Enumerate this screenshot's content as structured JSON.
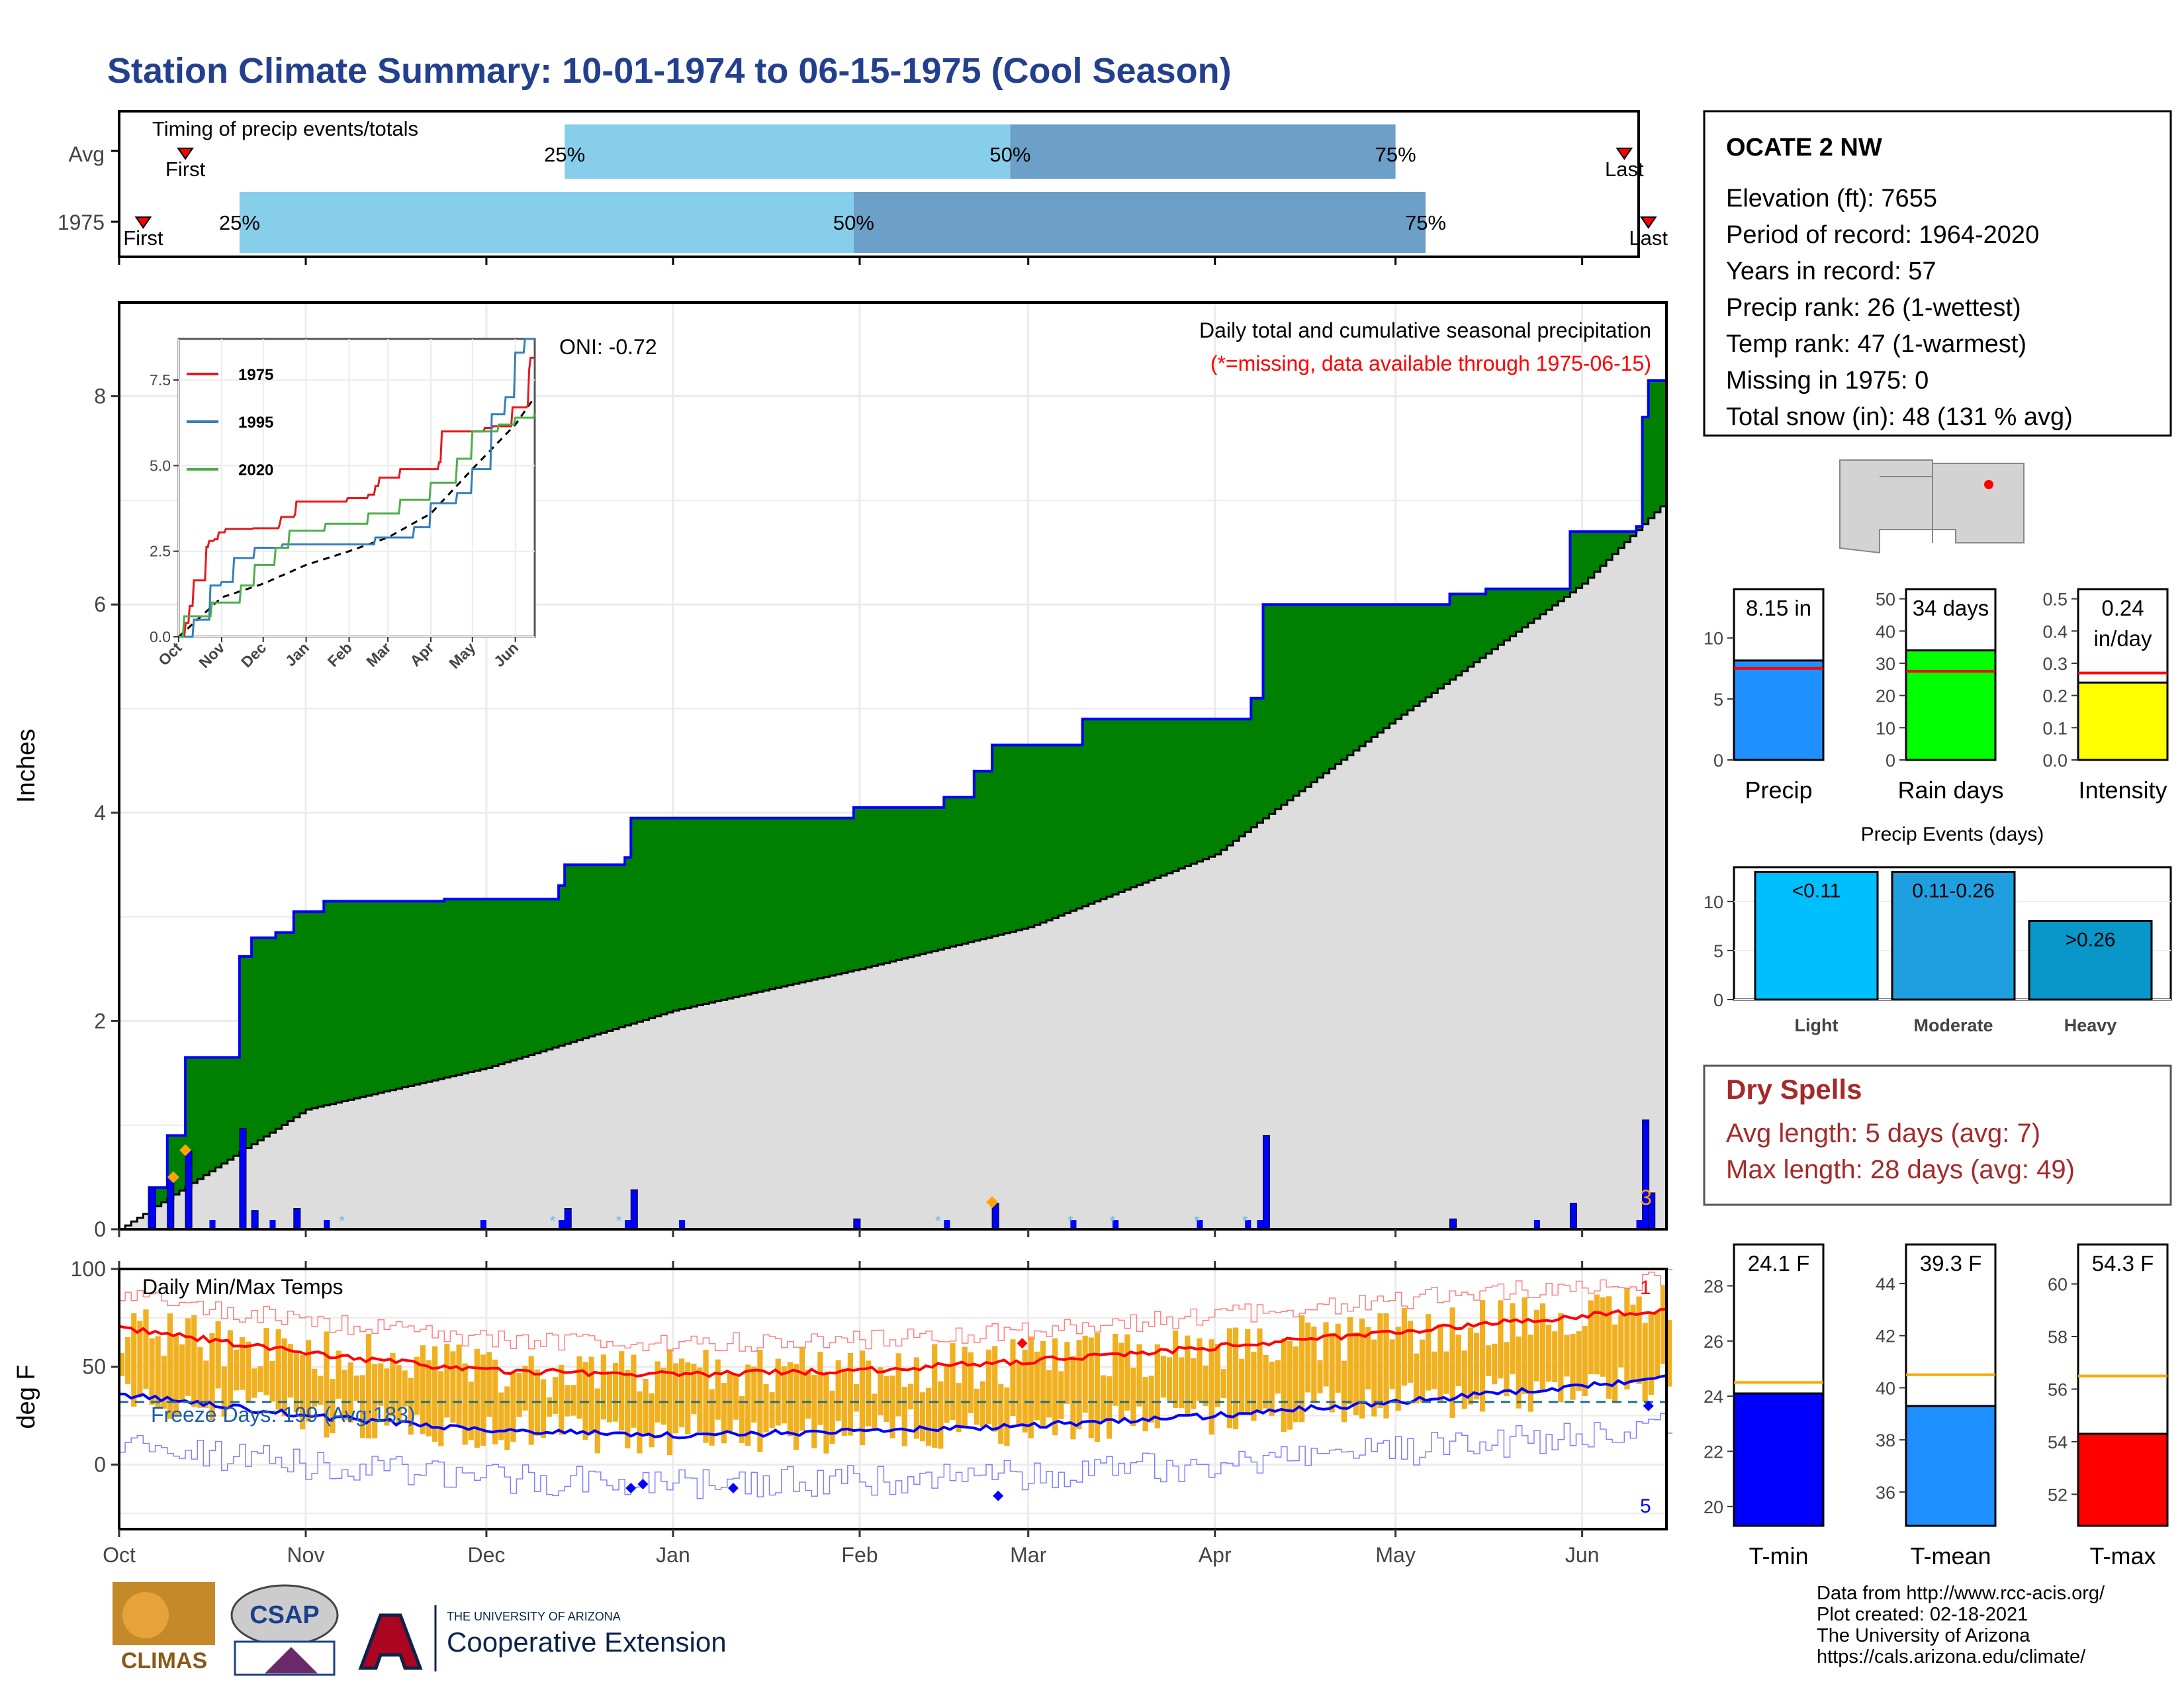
{
  "title": "Station Climate Summary: 10-01-1974 to 06-15-1975 (Cool Season)",
  "colors": {
    "title": "#23408e",
    "precip_green": "#008000",
    "precip_outline": "#0000ff",
    "avg_gray": "#dddddd",
    "bar_light": "#87ceeb",
    "bar_dark": "#6ca0c8",
    "tmax_line": "#ff0000",
    "tmin_line": "#0000ff",
    "temp_bars": "#f0b020",
    "dry_spell_text": "#a52a2a",
    "missing_note": "#ff0000"
  },
  "timing": {
    "title": "Timing of precip events/totals",
    "rows": [
      {
        "label": "Avg",
        "first": "First",
        "last": "Last",
        "p25": "25%",
        "p50": "50%",
        "p75": "75%",
        "first_date": "1974-10-12",
        "d25": "1974-12-14",
        "d50": "1975-02-26",
        "d75": "1975-05-01",
        "last_date": "1975-06-08"
      },
      {
        "label": "1975",
        "first": "First",
        "last": "Last",
        "p25": "25%",
        "p50": "50%",
        "p75": "75%",
        "first_date": "1974-10-05",
        "d25": "1974-10-21",
        "d50": "1975-01-31",
        "d75": "1975-05-06",
        "last_date": "1975-06-12"
      }
    ]
  },
  "main_chart": {
    "ylabel": "Inches",
    "title_line1": "Daily total and cumulative seasonal precipitation",
    "title_line2": "(*=missing, data available through 1975-06-15)",
    "oni": "ONI: -0.72",
    "y_ticks": [
      "0",
      "2",
      "4",
      "6",
      "8"
    ],
    "x_ticks": [
      "Oct",
      "Nov",
      "Dec",
      "Jan",
      "Feb",
      "Mar",
      "Apr",
      "May",
      "Jun"
    ],
    "corner_label": "3"
  },
  "inset": {
    "legend": [
      "1975",
      "1995",
      "2020"
    ],
    "legend_colors": [
      "#e41a1c",
      "#377eb8",
      "#4daf4a"
    ],
    "y_ticks": [
      "0.0",
      "2.5",
      "5.0",
      "7.5"
    ],
    "x_ticks": [
      "Oct",
      "Nov",
      "Dec",
      "Jan",
      "Feb",
      "Mar",
      "Apr",
      "May",
      "Jun"
    ]
  },
  "temp_chart": {
    "ylabel": "deg F",
    "title": "Daily Min/Max Temps",
    "freeze": "Freeze Days: 199 (Avg:183)",
    "y_ticks": [
      "0",
      "50",
      "100"
    ],
    "x_ticks": [
      "Oct",
      "Nov",
      "Dec",
      "Jan",
      "Feb",
      "Mar",
      "Apr",
      "May",
      "Jun"
    ],
    "record_high_count": "1",
    "record_low_count": "5"
  },
  "station": {
    "name": "OCATE 2 NW",
    "lines": [
      "Elevation (ft): 7655",
      "Period of record: 1964-2020",
      "Years in record: 57",
      "Precip rank: 26 (1-wettest)",
      "Temp rank: 47 (1-warmest)",
      "Missing in 1975: 0",
      "Total snow (in): 48 (131 % avg)"
    ]
  },
  "summary_bars": [
    {
      "name": "Precip",
      "label": "8.15 in",
      "label2": "",
      "value": 8.15,
      "avg": 7.5,
      "ymax": 14,
      "ticks": [
        "0",
        "5",
        "10"
      ],
      "tickvals": [
        0,
        5,
        10
      ],
      "color": "#1e90ff"
    },
    {
      "name": "Rain days",
      "label": "34 days",
      "label2": "",
      "value": 34,
      "avg": 27.5,
      "ymax": 53,
      "ticks": [
        "0",
        "10",
        "20",
        "30",
        "40",
        "50"
      ],
      "tickvals": [
        0,
        10,
        20,
        30,
        40,
        50
      ],
      "color": "#00ff00"
    },
    {
      "name": "Intensity",
      "label": "0.24",
      "label2": "in/day",
      "value": 0.24,
      "avg": 0.27,
      "ymax": 0.53,
      "ticks": [
        "0.0",
        "0.1",
        "0.2",
        "0.3",
        "0.4",
        "0.5"
      ],
      "tickvals": [
        0,
        0.1,
        0.2,
        0.3,
        0.4,
        0.5
      ],
      "color": "#ffff00"
    }
  ],
  "precip_events": {
    "title": "Precip Events (days)",
    "ticks": [
      "0",
      "5",
      "10"
    ],
    "bars": [
      {
        "name": "Light",
        "label": "<0.11",
        "value": 13,
        "color": "#00bfff"
      },
      {
        "name": "Moderate",
        "label": "0.11-0.26",
        "value": 13,
        "color": "#1ea0e0"
      },
      {
        "name": "Heavy",
        "label": ">0.26",
        "value": 8,
        "color": "#0996c8"
      }
    ]
  },
  "dry_spells": {
    "title": "Dry Spells",
    "avg": "Avg length: 5 days (avg: 7)",
    "max": "Max length: 28 days (avg: 49)"
  },
  "temp_bars": [
    {
      "name": "T-min",
      "label": "24.1 F",
      "value": 24.1,
      "avg": 24.5,
      "ymin": 19.3,
      "ymax": 29.5,
      "ticks": [
        "20",
        "22",
        "24",
        "26",
        "28"
      ],
      "tickvals": [
        20,
        22,
        24,
        26,
        28
      ],
      "color": "#0000ff"
    },
    {
      "name": "T-mean",
      "label": "39.3 F",
      "value": 39.3,
      "avg": 40.5,
      "ymin": 34.7,
      "ymax": 45.5,
      "ticks": [
        "36",
        "38",
        "40",
        "42",
        "44"
      ],
      "tickvals": [
        36,
        38,
        40,
        42,
        44
      ],
      "color": "#1e90ff"
    },
    {
      "name": "T-max",
      "label": "54.3 F",
      "value": 54.3,
      "avg": 56.5,
      "ymin": 50.8,
      "ymax": 61.5,
      "ticks": [
        "52",
        "54",
        "56",
        "58",
        "60"
      ],
      "tickvals": [
        52,
        54,
        56,
        58,
        60
      ],
      "color": "#ff0000"
    }
  ],
  "footer": {
    "lines": [
      "Data from http://www.rcc-acis.org/",
      "Plot created: 02-18-2021",
      "The University of Arizona",
      "https://cals.arizona.edu/climate/"
    ],
    "climas": "CLIMAS",
    "csap": "CSAP",
    "ua_small": "THE UNIVERSITY OF ARIZONA",
    "ua_big": "Cooperative Extension"
  },
  "chart_data": [
    {
      "type": "area",
      "title": "Daily total and cumulative seasonal precipitation",
      "ylabel": "Inches",
      "ylim": [
        0,
        8.9
      ],
      "cumulative_1975": [
        [
          "1974-10-01",
          0.0
        ],
        [
          "1974-10-06",
          0.4
        ],
        [
          "1974-10-09",
          0.9
        ],
        [
          "1974-10-12",
          1.65
        ],
        [
          "1974-10-21",
          2.62
        ],
        [
          "1974-10-23",
          2.8
        ],
        [
          "1974-10-27",
          2.85
        ],
        [
          "1974-10-30",
          3.05
        ],
        [
          "1974-11-04",
          3.15
        ],
        [
          "1974-11-24",
          3.17
        ],
        [
          "1974-12-13",
          3.3
        ],
        [
          "1974-12-14",
          3.5
        ],
        [
          "1974-12-24",
          3.57
        ],
        [
          "1974-12-25",
          3.95
        ],
        [
          "1975-01-31",
          4.05
        ],
        [
          "1975-02-15",
          4.15
        ],
        [
          "1975-02-20",
          4.4
        ],
        [
          "1975-02-23",
          4.65
        ],
        [
          "1975-03-10",
          4.9
        ],
        [
          "1975-04-07",
          5.1
        ],
        [
          "1975-04-09",
          6.0
        ],
        [
          "1975-05-10",
          6.1
        ],
        [
          "1975-05-16",
          6.15
        ],
        [
          "1975-05-30",
          6.7
        ],
        [
          "1975-06-10",
          6.75
        ],
        [
          "1975-06-11",
          7.8
        ],
        [
          "1975-06-12",
          8.15
        ],
        [
          "1975-06-15",
          8.15
        ]
      ],
      "average_cumulative": [
        [
          "1974-10-01",
          0.0
        ],
        [
          "1974-11-01",
          1.15
        ],
        [
          "1974-12-01",
          1.55
        ],
        [
          "1975-01-01",
          2.1
        ],
        [
          "1975-02-01",
          2.5
        ],
        [
          "1975-03-01",
          2.9
        ],
        [
          "1975-04-01",
          3.6
        ],
        [
          "1975-05-01",
          4.9
        ],
        [
          "1975-06-01",
          6.2
        ],
        [
          "1975-06-15",
          7.0
        ]
      ],
      "daily_1975": [
        [
          "1974-10-06",
          0.4
        ],
        [
          "1974-10-09",
          0.5
        ],
        [
          "1974-10-12",
          0.75
        ],
        [
          "1974-10-21",
          0.97
        ],
        [
          "1974-10-23",
          0.18
        ],
        [
          "1974-10-30",
          0.2
        ],
        [
          "1974-12-14",
          0.2
        ],
        [
          "1974-12-25",
          0.38
        ],
        [
          "1975-01-31",
          0.1
        ],
        [
          "1975-02-23",
          0.25
        ],
        [
          "1975-04-09",
          0.9
        ],
        [
          "1975-05-10",
          0.1
        ],
        [
          "1975-05-30",
          0.25
        ],
        [
          "1975-06-11",
          1.05
        ],
        [
          "1975-06-12",
          0.35
        ]
      ]
    },
    {
      "type": "line",
      "title": "",
      "series": [
        {
          "name": "1975"
        },
        {
          "name": "1995"
        },
        {
          "name": "2020"
        }
      ],
      "ylim": [
        0,
        8.7
      ]
    },
    {
      "type": "bar",
      "title": "Daily Min/Max Temps",
      "ylabel": "deg F",
      "ylim": [
        -33,
        100
      ],
      "avg_max": [
        [
          "1974-10-01",
          70
        ],
        [
          "1974-11-01",
          57
        ],
        [
          "1974-12-01",
          48
        ],
        [
          "1975-01-01",
          46
        ],
        [
          "1975-02-01",
          48
        ],
        [
          "1975-03-01",
          53
        ],
        [
          "1975-04-01",
          60
        ],
        [
          "1975-05-01",
          68
        ],
        [
          "1975-06-01",
          76
        ],
        [
          "1975-06-15",
          79
        ]
      ],
      "avg_min": [
        [
          "1974-10-01",
          36
        ],
        [
          "1974-11-01",
          25
        ],
        [
          "1974-12-01",
          18
        ],
        [
          "1975-01-01",
          15
        ],
        [
          "1975-02-01",
          17
        ],
        [
          "1975-03-01",
          20
        ],
        [
          "1975-04-01",
          25
        ],
        [
          "1975-05-01",
          32
        ],
        [
          "1975-06-01",
          40
        ],
        [
          "1975-06-15",
          44
        ]
      ],
      "freeze_line": 32
    },
    {
      "type": "bar",
      "categories": [
        "Precip",
        "Rain days",
        "Intensity"
      ],
      "values": [
        8.15,
        34,
        0.24
      ]
    },
    {
      "type": "bar",
      "title": "Precip Events (days)",
      "categories": [
        "Light",
        "Moderate",
        "Heavy"
      ],
      "values": [
        13,
        13,
        8
      ]
    },
    {
      "type": "bar",
      "categories": [
        "T-min",
        "T-mean",
        "T-max"
      ],
      "values": [
        24.1,
        39.3,
        54.3
      ]
    }
  ]
}
